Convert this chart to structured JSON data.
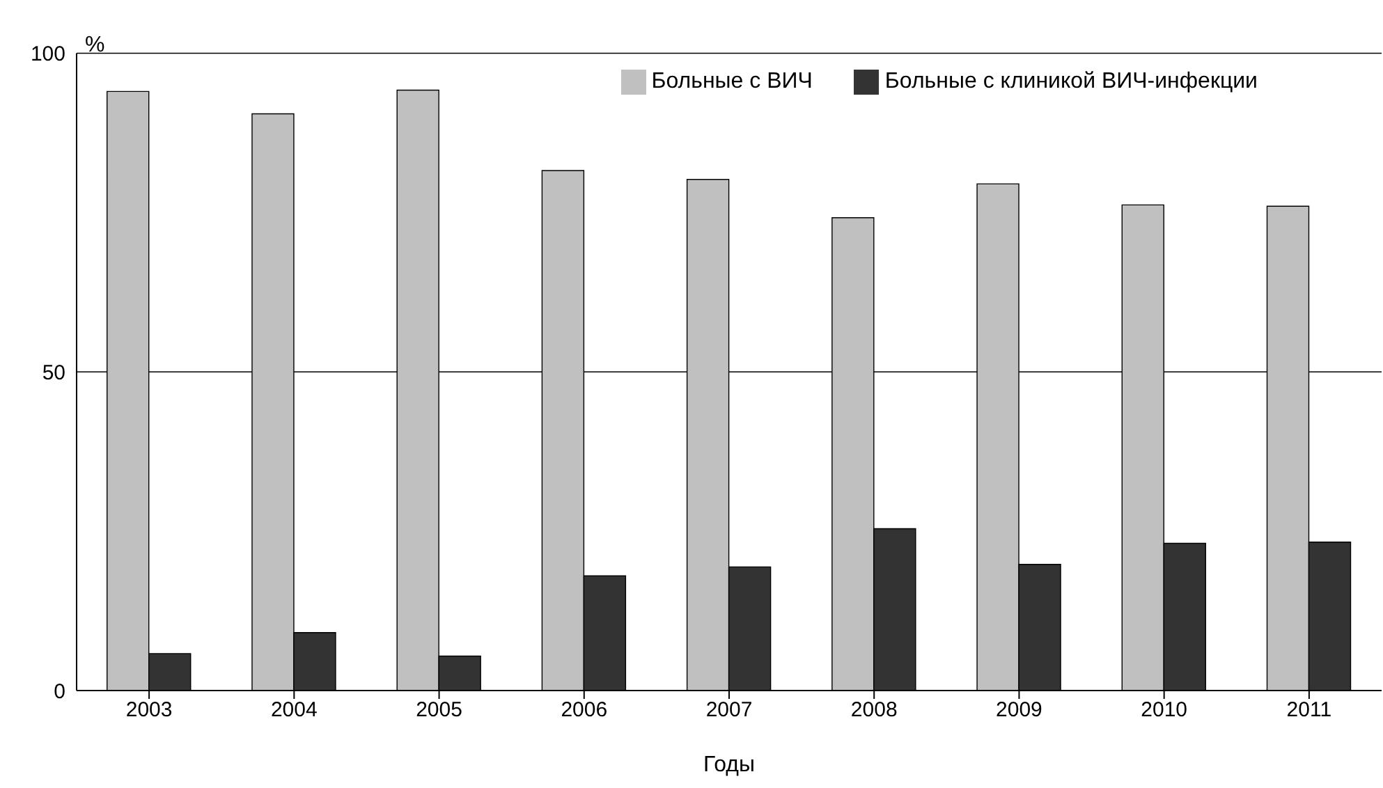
{
  "chart_data": {
    "type": "bar",
    "ylabel": "%",
    "xlabel": "Годы",
    "categories": [
      "2003",
      "2004",
      "2005",
      "2006",
      "2007",
      "2008",
      "2009",
      "2010",
      "2011"
    ],
    "series": [
      {
        "name": "Больные с ВИЧ",
        "color": "#c0c0c0",
        "values": [
          94.0,
          90.5,
          94.2,
          81.6,
          80.2,
          74.2,
          79.5,
          76.2,
          76.0
        ]
      },
      {
        "name": "Больные с клиникой ВИЧ-инфекции",
        "color": "#333333",
        "values": [
          5.8,
          9.1,
          5.4,
          18.0,
          19.4,
          25.4,
          19.8,
          23.1,
          23.3
        ]
      }
    ],
    "ylim": [
      0,
      100
    ],
    "yticks": [
      0,
      50,
      100
    ],
    "grid": "y",
    "legend": "top right"
  }
}
